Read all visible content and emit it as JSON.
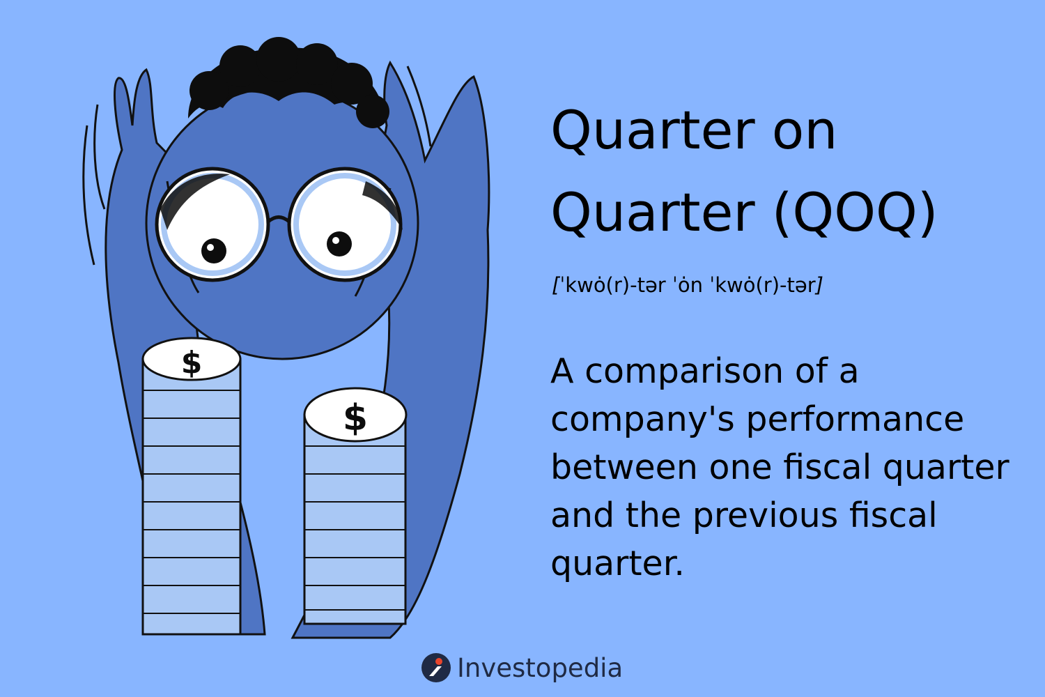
{
  "title": {
    "line1": "Quarter on",
    "line2": "Quarter (QOQ)"
  },
  "pronunciation": {
    "open": "[",
    "text": "ˈkwȯ(r)-tər ˈȯn ˈkwȯ(r)-tər",
    "close": "]"
  },
  "definition": {
    "line1": "A comparison of a",
    "line2": "company's performance",
    "line3": "between one fiscal quarter",
    "line4": "and the previous fiscal",
    "line5": "quarter."
  },
  "illustration": {
    "coin_symbol": "$",
    "subject": "person-peering-at-coin-stacks"
  },
  "brand": {
    "name": "Investopedia",
    "icon": "investopedia-logo-icon"
  },
  "colors": {
    "background": "#88b5ff",
    "figure": "#4f75c4",
    "figure_dark": "#3d5fa8",
    "coin": "#a9c8f5",
    "ink": "#000000"
  }
}
